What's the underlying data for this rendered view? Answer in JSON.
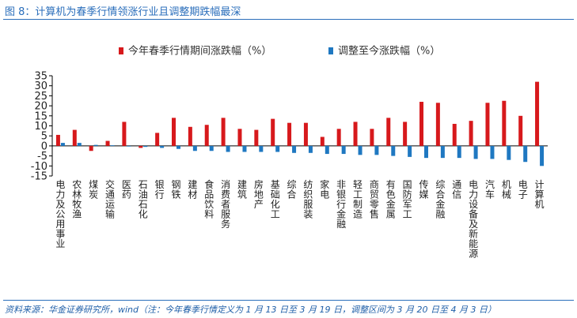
{
  "header": {
    "title": "图 8：计算机为春季行情领涨行业且调整期跌幅最深"
  },
  "footer": {
    "source": "资料来源：华金证券研究所，wind（注：今年春季行情定义为 1 月 13 日至 3 月 19 日，调整区间为 3 月 20 日至 4 月 3 日）"
  },
  "colors": {
    "series_spring": "#d7191c",
    "series_adjust": "#1f78c1",
    "title": "#2a6ebb"
  },
  "chart_data": {
    "type": "bar",
    "categories": [
      "电力及公用事业",
      "农林牧渔",
      "煤炭",
      "交通运输",
      "医药",
      "石油石化",
      "银行",
      "钢铁",
      "建材",
      "食品饮料",
      "消费者服务",
      "建筑",
      "房地产",
      "基础化工",
      "综合",
      "纺织服装",
      "家电",
      "非银行金融",
      "轻工制造",
      "商贸零售",
      "有色金属",
      "国防军工",
      "传媒",
      "综合金融",
      "通信",
      "电力设备及新能源",
      "汽车",
      "机械",
      "电子",
      "计算机"
    ],
    "series": [
      {
        "name": "今年春季行情期间涨跌幅（%）",
        "color": "#d7191c",
        "values": [
          5.5,
          8,
          -2.5,
          2.5,
          12,
          -1,
          6.5,
          14,
          9.5,
          10.5,
          14,
          8.5,
          8,
          13.5,
          11.5,
          11.5,
          4.5,
          8.5,
          12,
          8.5,
          14,
          12,
          22,
          21.5,
          11,
          12.5,
          21.5,
          22.5,
          15,
          32
        ]
      },
      {
        "name": "调整至今涨跌幅（%）",
        "color": "#1f78c1",
        "values": [
          1.5,
          1.5,
          0.5,
          0.3,
          -0.2,
          -0.5,
          -1,
          -1.5,
          -2.5,
          -2.5,
          -3,
          -3,
          -3,
          -3,
          -3.5,
          -3.5,
          -4,
          -4,
          -4.5,
          -4.5,
          -5,
          -5.5,
          -6,
          -6,
          -6,
          -6.5,
          -6.5,
          -7,
          -8,
          -10
        ]
      }
    ],
    "ylim": [
      -15,
      35
    ],
    "yticks": [
      -15,
      -10,
      -5,
      0,
      5,
      10,
      15,
      20,
      25,
      30,
      35
    ],
    "grid": false,
    "legend_position": "top"
  }
}
